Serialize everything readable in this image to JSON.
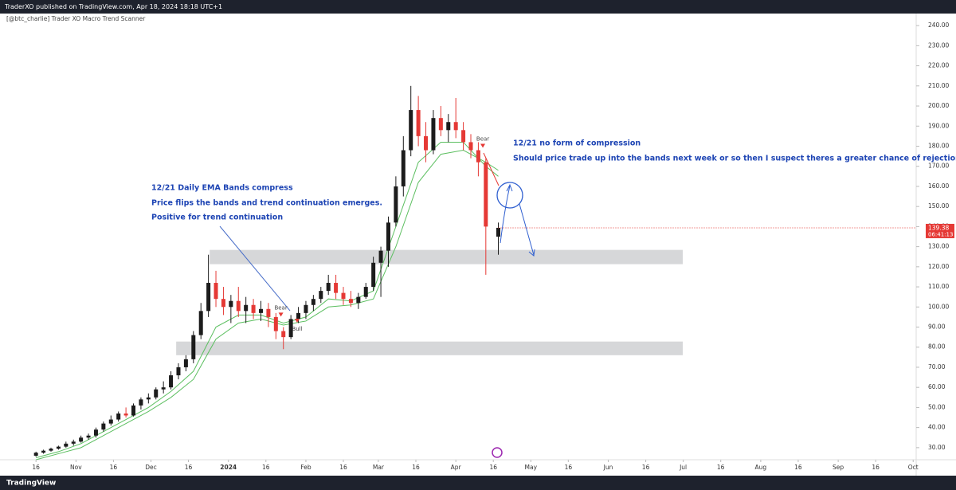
{
  "header": {
    "publisher": "TraderXO published on TradingView.com, Apr 18, 2024 18:18 UTC+1",
    "logo": "TradingView"
  },
  "chart_data": {
    "type": "candlestick",
    "subtitle": "[@btc_charlie] Trader XO Macro Trend Scanner",
    "up_color": "#1c1c1c",
    "down_color": "#e53935",
    "candles": {
      "x": [
        15,
        18,
        21,
        24,
        27,
        30,
        33,
        36,
        39,
        42,
        45,
        48,
        51,
        54,
        57,
        60,
        63,
        66,
        69,
        72,
        75,
        78,
        81,
        84,
        87,
        90,
        93,
        96,
        99,
        102,
        105,
        108,
        111,
        114,
        117,
        120,
        123,
        126,
        129,
        132,
        135,
        138,
        141,
        144,
        147,
        150,
        153,
        156,
        159,
        162,
        165,
        168,
        171,
        174,
        177,
        180,
        183,
        186,
        189,
        192,
        195,
        200
      ],
      "open": [
        26,
        27.5,
        28.5,
        29.5,
        30.5,
        32,
        33,
        35,
        36,
        39,
        42,
        44,
        47,
        46,
        51,
        54,
        55,
        59,
        60,
        66,
        70,
        74,
        86,
        98,
        112,
        104,
        100,
        103,
        98,
        101,
        97,
        99,
        95,
        88,
        85,
        94,
        97,
        101,
        104,
        108,
        112,
        107,
        104,
        102,
        105,
        110,
        122,
        128,
        142,
        160,
        178,
        198,
        185,
        178,
        194,
        188,
        192,
        188,
        182,
        178,
        172,
        135
      ],
      "high": [
        28,
        29,
        30,
        31,
        33,
        34,
        36,
        37,
        40,
        43,
        46,
        48,
        50,
        52,
        55,
        57,
        60,
        63,
        68,
        72,
        76,
        88,
        102,
        126,
        118,
        110,
        106,
        110,
        105,
        104,
        103,
        102,
        97,
        90,
        96,
        100,
        103,
        106,
        110,
        116,
        116,
        110,
        108,
        107,
        112,
        125,
        130,
        145,
        165,
        185,
        210,
        205,
        192,
        198,
        200,
        196,
        204,
        192,
        186,
        182,
        174,
        142
      ],
      "low": [
        25.5,
        27,
        28,
        29,
        30,
        31,
        32.5,
        34,
        35,
        38,
        41,
        43,
        45,
        45.5,
        49,
        52,
        54,
        57,
        59,
        64,
        68,
        72,
        84,
        95,
        100,
        96,
        92,
        95,
        92,
        94,
        93,
        90,
        84,
        79,
        84,
        92,
        94,
        98,
        102,
        106,
        104,
        101,
        100,
        99,
        104,
        108,
        105,
        120,
        140,
        155,
        175,
        180,
        172,
        176,
        185,
        182,
        184,
        178,
        174,
        165,
        116,
        126
      ],
      "close": [
        27.5,
        28.5,
        29.5,
        30.5,
        32,
        33,
        35,
        36,
        39,
        42,
        44,
        47,
        46,
        51,
        54,
        55,
        59,
        60,
        66,
        70,
        74,
        86,
        98,
        112,
        104,
        100,
        103,
        98,
        101,
        97,
        99,
        95,
        88,
        85,
        94,
        97,
        101,
        104,
        108,
        112,
        107,
        104,
        102,
        105,
        110,
        122,
        128,
        142,
        160,
        178,
        198,
        185,
        178,
        194,
        188,
        192,
        188,
        182,
        178,
        172,
        140,
        139.38
      ]
    },
    "bands": {
      "color": "#5cbf60",
      "x": [
        15,
        24,
        33,
        42,
        51,
        60,
        69,
        78,
        87,
        96,
        105,
        114,
        123,
        132,
        141,
        150,
        159,
        168,
        177,
        186,
        195,
        200
      ],
      "fast": [
        25,
        28,
        32,
        38,
        44,
        50,
        58,
        68,
        90,
        96,
        96,
        92,
        95,
        104,
        103,
        108,
        140,
        172,
        182,
        182,
        170,
        165
      ],
      "slow": [
        24,
        27,
        30,
        36,
        42,
        48,
        55,
        64,
        84,
        92,
        94,
        91,
        93,
        100,
        101,
        104,
        130,
        162,
        176,
        178,
        172,
        168
      ]
    },
    "zones": [
      {
        "x": [
          84.5,
          273.8
        ],
        "y": [
          121.3,
          128.4
        ]
      },
      {
        "x": [
          71.1,
          273.8
        ],
        "y": [
          76,
          82.8
        ]
      }
    ],
    "signals": [
      {
        "label": "Bear",
        "x": 113,
        "y": 96,
        "color": "#e53935"
      },
      {
        "label": "Bull",
        "x": 119.5,
        "y": 93,
        "color": "#e53935"
      },
      {
        "label": "Bear",
        "x": 193.8,
        "y": 180,
        "color": "#e53935"
      }
    ],
    "annotations": [
      "12/21 Daily EMA Bands compress",
      "Price flips the bands and trend continuation emerges.",
      "Positive for trend continuation",
      "12/21 no form of compression",
      "Should price trade up into the bands next week or so then I suspect theres a greater chance of rejection"
    ],
    "current_price": {
      "value": 139.38,
      "label": "139.38",
      "countdown": "06:41:13"
    },
    "xlim": [
      0.6,
      367.2
    ],
    "ylim": [
      24,
      246
    ],
    "xticks": [
      {
        "value": 15,
        "label": "16"
      },
      {
        "value": 31,
        "label": "Nov"
      },
      {
        "value": 46,
        "label": "16"
      },
      {
        "value": 61,
        "label": "Dec"
      },
      {
        "value": 76,
        "label": "16"
      },
      {
        "value": 92,
        "label": "2024"
      },
      {
        "value": 107,
        "label": "16"
      },
      {
        "value": 123,
        "label": "Feb"
      },
      {
        "value": 138,
        "label": "16"
      },
      {
        "value": 152,
        "label": "Mar"
      },
      {
        "value": 167,
        "label": "16"
      },
      {
        "value": 183,
        "label": "Apr"
      },
      {
        "value": 198,
        "label": "16"
      },
      {
        "value": 213,
        "label": "May"
      },
      {
        "value": 228,
        "label": "16"
      },
      {
        "value": 244,
        "label": "Jun"
      },
      {
        "value": 259,
        "label": "16"
      },
      {
        "value": 274,
        "label": "Jul"
      },
      {
        "value": 289,
        "label": "16"
      },
      {
        "value": 305,
        "label": "Aug"
      },
      {
        "value": 320,
        "label": "16"
      },
      {
        "value": 336,
        "label": "Sep"
      },
      {
        "value": 351,
        "label": "16"
      },
      {
        "value": 366,
        "label": "Oct"
      }
    ],
    "yticks": [
      {
        "value": 30,
        "label": "30.00"
      },
      {
        "value": 40,
        "label": "40.00"
      },
      {
        "value": 50,
        "label": "50.00"
      },
      {
        "value": 60,
        "label": "60.00"
      },
      {
        "value": 70,
        "label": "70.00"
      },
      {
        "value": 80,
        "label": "80.00"
      },
      {
        "value": 90,
        "label": "90.00"
      },
      {
        "value": 100,
        "label": "100.00"
      },
      {
        "value": 110,
        "label": "110.00"
      },
      {
        "value": 120,
        "label": "120.00"
      },
      {
        "value": 130,
        "label": "130.00"
      },
      {
        "value": 140,
        "label": "140.00"
      },
      {
        "value": 150,
        "label": "150.00"
      },
      {
        "value": 160,
        "label": "160.00"
      },
      {
        "value": 170,
        "label": "170.00"
      },
      {
        "value": 180,
        "label": "180.00"
      },
      {
        "value": 190,
        "label": "190.00"
      },
      {
        "value": 200,
        "label": "200.00"
      },
      {
        "value": 210,
        "label": "210.00"
      },
      {
        "value": 220,
        "label": "220.00"
      },
      {
        "value": 230,
        "label": "230.00"
      },
      {
        "value": 240,
        "label": "240.00"
      }
    ],
    "grid": false
  }
}
